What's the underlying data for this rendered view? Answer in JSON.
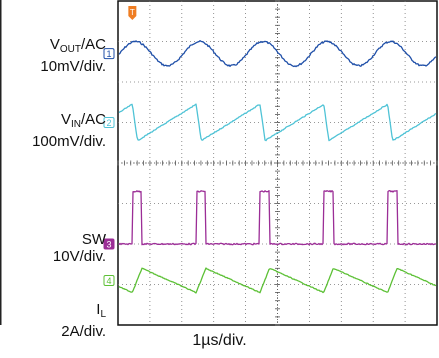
{
  "chart_data": {
    "type": "line",
    "title": "",
    "timebase": "1µs/div.",
    "grid": true,
    "divisions": {
      "x": 10,
      "y": 8
    },
    "trigger_marker": "T",
    "channels": [
      {
        "id": "1",
        "name_main": "V",
        "name_sub": "OUT",
        "name_tail": "/AC",
        "scale": "10mV/div.",
        "color": "#1f4fa8",
        "shape": "sine ripple",
        "period_div": 2,
        "ripple_pkpk_mV": 15
      },
      {
        "id": "2",
        "name_main": "V",
        "name_sub": "IN",
        "name_tail": "/AC",
        "scale": "100mV/div.",
        "color": "#4fc3d6",
        "shape": "sawtooth",
        "period_div": 2,
        "ripple_pkpk_mV": 150
      },
      {
        "id": "3",
        "name_main": "SW",
        "name_sub": "",
        "name_tail": "",
        "scale": "10V/div.",
        "color": "#9b2d96",
        "shape": "pulse",
        "period_div": 2,
        "pulse_width_div": 0.3,
        "pulse_high_V": 21,
        "pulse_low_V": 0
      },
      {
        "id": "4",
        "name_main": "I",
        "name_sub": "L",
        "name_tail": "",
        "scale": "2A/div.",
        "color": "#5cc035",
        "shape": "sawtooth",
        "period_div": 2,
        "ripple_pkpk_A": 1.3
      }
    ]
  }
}
